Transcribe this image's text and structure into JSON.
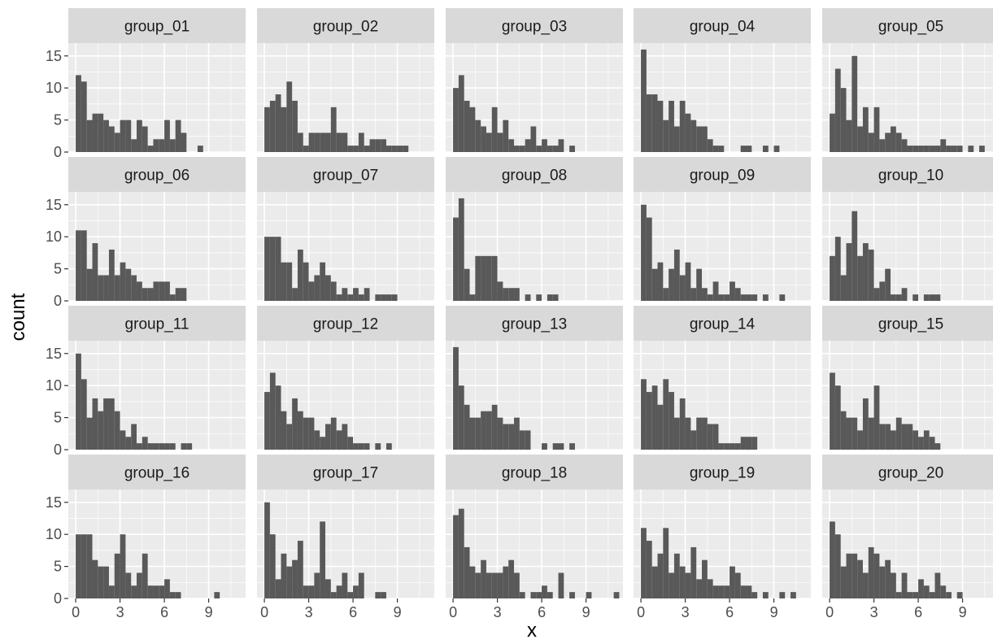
{
  "chart_data": {
    "type": "bar",
    "facet_layout": {
      "rows": 4,
      "cols": 5
    },
    "bin_width": 0.375,
    "xlim": [
      -0.5,
      11.5
    ],
    "ylim": [
      0,
      17
    ],
    "xticks": [
      0,
      3,
      6,
      9
    ],
    "yticks": [
      0,
      5,
      10,
      15
    ],
    "xtick_labels": [
      "0",
      "3",
      "6",
      "9"
    ],
    "ytick_labels": [
      "0",
      "5",
      "10",
      "15"
    ],
    "xlabel": "x",
    "ylabel": "count",
    "grid": true,
    "colors": {
      "bar": "#595959",
      "panel": "#ebebeb",
      "grid": "#ffffff",
      "strip": "#d9d9d9"
    },
    "panels": [
      {
        "name": "group_01",
        "counts": [
          12,
          11,
          5,
          6,
          6,
          5,
          4,
          3,
          5,
          5,
          2,
          5,
          4,
          1,
          2,
          2,
          5,
          2,
          5,
          3,
          0,
          0,
          1,
          0,
          0,
          0,
          0,
          0,
          0,
          0
        ]
      },
      {
        "name": "group_02",
        "counts": [
          7,
          8,
          9,
          7,
          11,
          8,
          3,
          1,
          3,
          3,
          3,
          3,
          7,
          3,
          3,
          1,
          1,
          3,
          1,
          2,
          2,
          2,
          1,
          1,
          1,
          1,
          0,
          0,
          0,
          0
        ]
      },
      {
        "name": "group_03",
        "counts": [
          10,
          12,
          8,
          7,
          5,
          4,
          3,
          7,
          3,
          5,
          2,
          1,
          1,
          2,
          4,
          1,
          2,
          1,
          1,
          2,
          0,
          1,
          0,
          0,
          0,
          0,
          0,
          0,
          0,
          0
        ]
      },
      {
        "name": "group_04",
        "counts": [
          16,
          9,
          9,
          8,
          5,
          8,
          4,
          8,
          6,
          5,
          4,
          4,
          2,
          1,
          1,
          0,
          0,
          0,
          1,
          1,
          0,
          0,
          1,
          0,
          1,
          0,
          0,
          0,
          0,
          0
        ]
      },
      {
        "name": "group_05",
        "counts": [
          6,
          13,
          10,
          5,
          15,
          4,
          7,
          3,
          7,
          2,
          3,
          4,
          3,
          2,
          1,
          1,
          1,
          1,
          1,
          1,
          2,
          1,
          1,
          1,
          0,
          1,
          0,
          1,
          0,
          0
        ]
      },
      {
        "name": "group_06",
        "counts": [
          11,
          11,
          5,
          9,
          4,
          4,
          8,
          4,
          6,
          5,
          4,
          3,
          2,
          2,
          3,
          3,
          3,
          1,
          2,
          2,
          0,
          0,
          0,
          0,
          0,
          0,
          0,
          0,
          0,
          0
        ]
      },
      {
        "name": "group_07",
        "counts": [
          10,
          10,
          10,
          6,
          6,
          2,
          8,
          6,
          3,
          4,
          6,
          4,
          3,
          1,
          2,
          1,
          2,
          1,
          2,
          0,
          1,
          1,
          1,
          1,
          0,
          0,
          0,
          0,
          0,
          0
        ]
      },
      {
        "name": "group_08",
        "counts": [
          13,
          16,
          5,
          1,
          7,
          7,
          7,
          7,
          3,
          2,
          2,
          2,
          0,
          1,
          0,
          1,
          0,
          1,
          1,
          0,
          0,
          0,
          0,
          0,
          0,
          0,
          0,
          0,
          0,
          0
        ]
      },
      {
        "name": "group_09",
        "counts": [
          15,
          13,
          5,
          6,
          2,
          5,
          8,
          4,
          6,
          2,
          5,
          2,
          1,
          3,
          1,
          1,
          3,
          2,
          1,
          1,
          1,
          0,
          1,
          0,
          0,
          1,
          0,
          0,
          0,
          0
        ]
      },
      {
        "name": "group_10",
        "counts": [
          7,
          10,
          4,
          9,
          14,
          7,
          9,
          8,
          2,
          3,
          5,
          1,
          1,
          2,
          0,
          1,
          0,
          1,
          1,
          1,
          0,
          0,
          0,
          0,
          0,
          0,
          0,
          0,
          0,
          0
        ]
      },
      {
        "name": "group_11",
        "counts": [
          15,
          11,
          5,
          8,
          6,
          8,
          8,
          6,
          3,
          2,
          4,
          1,
          2,
          1,
          1,
          1,
          1,
          1,
          0,
          1,
          1,
          0,
          0,
          0,
          0,
          0,
          0,
          0,
          0,
          0
        ]
      },
      {
        "name": "group_12",
        "counts": [
          9,
          12,
          10,
          6,
          4,
          8,
          6,
          5,
          5,
          3,
          2,
          4,
          5,
          3,
          4,
          2,
          1,
          1,
          1,
          0,
          1,
          0,
          1,
          0,
          0,
          0,
          0,
          0,
          0,
          0
        ]
      },
      {
        "name": "group_13",
        "counts": [
          16,
          10,
          7,
          5,
          5,
          6,
          6,
          7,
          5,
          4,
          4,
          5,
          3,
          3,
          0,
          0,
          1,
          0,
          1,
          1,
          0,
          1,
          0,
          0,
          0,
          0,
          0,
          0,
          0,
          0
        ]
      },
      {
        "name": "group_14",
        "counts": [
          11,
          9,
          10,
          7,
          11,
          9,
          5,
          8,
          5,
          3,
          5,
          5,
          4,
          4,
          1,
          1,
          1,
          1,
          2,
          2,
          2,
          0,
          0,
          0,
          0,
          0,
          0,
          0,
          0,
          0
        ]
      },
      {
        "name": "group_15",
        "counts": [
          12,
          10,
          6,
          5,
          5,
          3,
          8,
          5,
          10,
          4,
          4,
          3,
          5,
          4,
          4,
          3,
          2,
          3,
          2,
          1,
          0,
          0,
          0,
          0,
          0,
          0,
          0,
          0,
          0,
          0
        ]
      },
      {
        "name": "group_16",
        "counts": [
          10,
          10,
          10,
          6,
          5,
          5,
          2,
          7,
          10,
          4,
          2,
          4,
          7,
          2,
          2,
          2,
          3,
          1,
          1,
          0,
          0,
          0,
          0,
          0,
          0,
          1,
          0,
          0,
          0,
          0
        ]
      },
      {
        "name": "group_17",
        "counts": [
          15,
          10,
          3,
          7,
          5,
          6,
          9,
          2,
          2,
          4,
          12,
          3,
          1,
          2,
          4,
          1,
          2,
          4,
          0,
          0,
          1,
          1,
          0,
          0,
          0,
          0,
          0,
          0,
          0,
          0
        ]
      },
      {
        "name": "group_18",
        "counts": [
          13,
          14,
          8,
          5,
          4,
          6,
          4,
          4,
          4,
          5,
          6,
          4,
          1,
          0,
          1,
          1,
          2,
          1,
          0,
          4,
          0,
          1,
          0,
          0,
          1,
          0,
          0,
          0,
          0,
          1
        ]
      },
      {
        "name": "group_19",
        "counts": [
          11,
          9,
          5,
          7,
          11,
          4,
          7,
          5,
          4,
          8,
          3,
          6,
          3,
          2,
          2,
          2,
          5,
          4,
          2,
          2,
          1,
          0,
          1,
          0,
          0,
          1,
          0,
          1,
          0,
          0
        ]
      },
      {
        "name": "group_20",
        "counts": [
          12,
          10,
          5,
          7,
          7,
          6,
          4,
          8,
          7,
          5,
          6,
          4,
          1,
          4,
          1,
          1,
          3,
          2,
          1,
          4,
          2,
          1,
          0,
          1,
          0,
          0,
          0,
          0,
          0,
          0
        ]
      }
    ]
  }
}
